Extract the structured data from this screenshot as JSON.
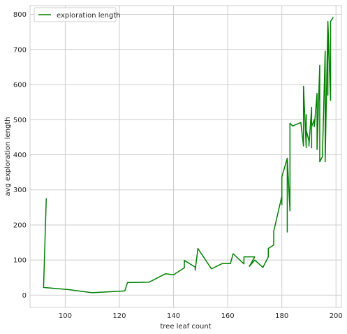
{
  "chart_data": {
    "type": "line",
    "title": "",
    "xlabel": "tree leaf count",
    "ylabel": "avg exploration length",
    "xlim": [
      87,
      202
    ],
    "ylim": [
      -35,
      825
    ],
    "xticks": [
      100,
      120,
      140,
      160,
      180,
      200
    ],
    "yticks": [
      0,
      100,
      200,
      300,
      400,
      500,
      600,
      700,
      800
    ],
    "grid": true,
    "legend_position": "top-left",
    "series": [
      {
        "name": "exploration length",
        "color": "#008000",
        "x": [
          93,
          92,
          101,
          110,
          122,
          123,
          131,
          137,
          140,
          144,
          144,
          148,
          148,
          149,
          154,
          158,
          161,
          162,
          166,
          166,
          170,
          168,
          170,
          173,
          175,
          175,
          177,
          177,
          180,
          180,
          180,
          182,
          182,
          182,
          183,
          183,
          184,
          187,
          188,
          188,
          189,
          189,
          189,
          190,
          190,
          191,
          191,
          191,
          192,
          192,
          193,
          193,
          194,
          194,
          195,
          195,
          196,
          196,
          196,
          196,
          197,
          197,
          197,
          198,
          198,
          199
        ],
        "y": [
          276,
          22,
          16,
          7,
          12,
          36,
          37,
          61,
          58,
          78,
          99,
          80,
          71,
          133,
          75,
          90,
          90,
          118,
          89,
          109,
          109,
          82,
          100,
          79,
          109,
          133,
          143,
          182,
          282,
          258,
          337,
          390,
          180,
          390,
          240,
          490,
          482,
          492,
          425,
          595,
          420,
          515,
          470,
          440,
          425,
          535,
          420,
          480,
          500,
          480,
          575,
          415,
          655,
          380,
          395,
          400,
          695,
          560,
          640,
          380,
          780,
          570,
          780,
          555,
          780,
          792
        ]
      }
    ]
  }
}
